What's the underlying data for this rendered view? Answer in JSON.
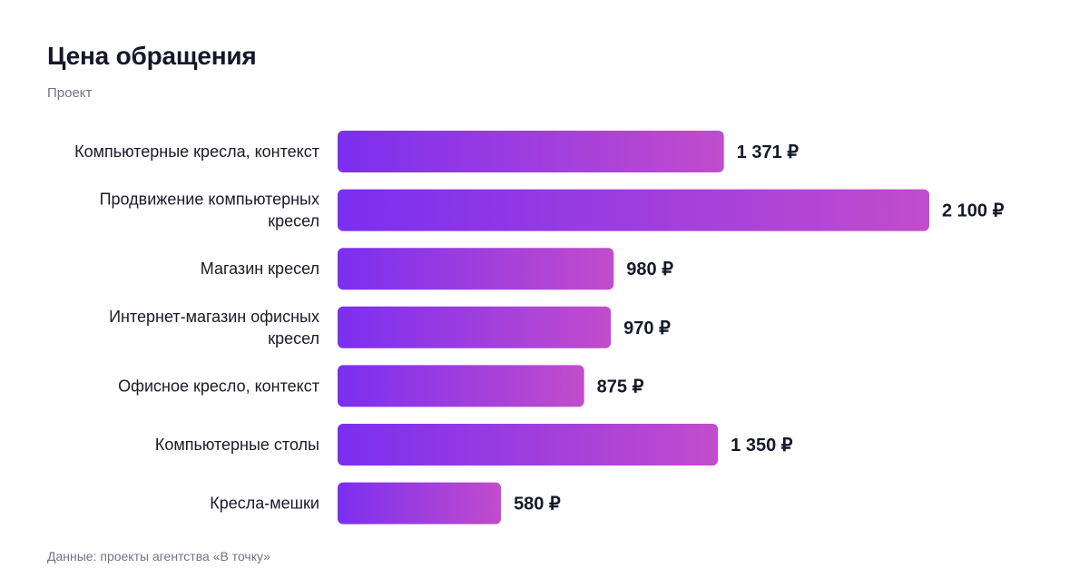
{
  "chart_data": {
    "type": "bar",
    "orientation": "horizontal",
    "title": "Цена обращения",
    "subtitle": "Проект",
    "source": "Данные: проекты агентства «В точку»",
    "unit_symbol": "₽",
    "categories": [
      [
        "Компьютерные кресла, контекст"
      ],
      [
        "Продвижение компьютерных",
        "кресел"
      ],
      [
        "Магазин кресел"
      ],
      [
        "Интернет-магазин офисных",
        "кресел"
      ],
      [
        "Офисное кресло, контекст"
      ],
      [
        "Компьютерные столы"
      ],
      [
        "Кресла-мешки"
      ]
    ],
    "values": [
      1371,
      2100,
      980,
      970,
      875,
      1350,
      580
    ],
    "value_labels": [
      "1 371",
      "2 100",
      "980",
      "970",
      "875",
      "1 350",
      "580"
    ],
    "bar_gradient": [
      "#7b2ff0",
      "#c24ccc"
    ]
  }
}
